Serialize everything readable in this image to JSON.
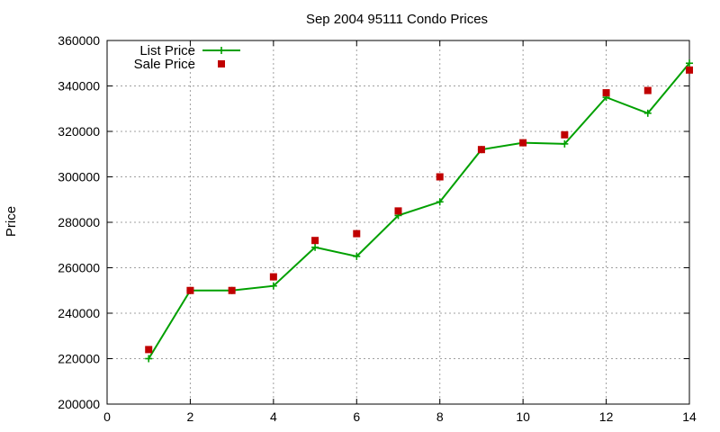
{
  "chart_data": {
    "type": "line",
    "title": "Sep 2004 95111 Condo Prices",
    "xlabel": "",
    "ylabel": "Price",
    "xlim": [
      0,
      14
    ],
    "ylim": [
      200000,
      360000
    ],
    "xticks": [
      0,
      2,
      4,
      6,
      8,
      10,
      12,
      14
    ],
    "yticks": [
      200000,
      220000,
      240000,
      260000,
      280000,
      300000,
      320000,
      340000,
      360000
    ],
    "grid": true,
    "legend_position": "top-left",
    "series": [
      {
        "name": "List Price",
        "style": "line+cross",
        "color": "#00a000",
        "x": [
          1,
          2,
          3,
          4,
          5,
          6,
          7,
          8,
          9,
          10,
          11,
          12,
          13,
          14
        ],
        "y": [
          220000,
          250000,
          250000,
          252000,
          269000,
          265000,
          283000,
          289000,
          312000,
          315000,
          314500,
          335000,
          328000,
          350000
        ]
      },
      {
        "name": "Sale Price",
        "style": "square",
        "color": "#c00000",
        "x": [
          1,
          2,
          3,
          4,
          5,
          6,
          7,
          8,
          9,
          10,
          11,
          12,
          13,
          14
        ],
        "y": [
          224000,
          250000,
          250000,
          256000,
          272000,
          275000,
          285000,
          300000,
          312000,
          315000,
          318500,
          337000,
          338000,
          347000
        ]
      }
    ]
  }
}
